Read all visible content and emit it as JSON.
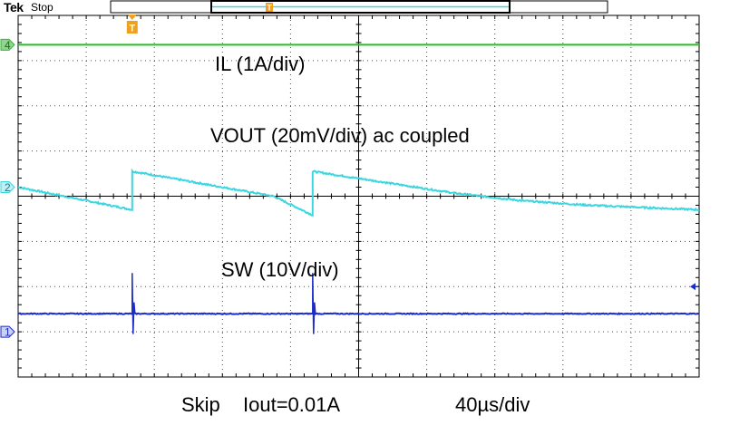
{
  "scope": {
    "brand": "Tek",
    "run_state": "Stop",
    "trigger_marker": "T",
    "record_marker": "T",
    "annotations": {
      "il": "IL (1A/div)",
      "vout": "VOUT (20mV/div) ac coupled",
      "sw": "SW (10V/div)"
    },
    "caption": {
      "mode": "Skip",
      "iout": "Iout=0.01A",
      "timebase": "40µs/div"
    },
    "colors": {
      "grid": "#000000",
      "ch1_sw": "#1c2cc8",
      "ch2_vout": "#3cd6e0",
      "ch4_il": "#26bf26",
      "trigger": "#f0a020"
    }
  },
  "chart_data": {
    "type": "line",
    "title": "",
    "xlabel": "",
    "ylabel": "",
    "x_divisions": 10,
    "y_divisions": 8,
    "grid": true,
    "timebase": "40µs/div",
    "xlim": [
      0,
      400
    ],
    "x_unit": "µs",
    "ylim": [
      -4,
      4
    ],
    "y_unit": "div",
    "series": [
      {
        "name": "4",
        "label": "IL (1A/div)",
        "channel": 4,
        "color": "#26bf26",
        "ground_level": 3.35,
        "x": [
          0,
          400
        ],
        "y": [
          3.35,
          3.35
        ]
      },
      {
        "name": "2",
        "label": "VOUT (20mV/div) ac coupled",
        "channel": 2,
        "color": "#3cd6e0",
        "ground_level": 0.2,
        "x": [
          0,
          67,
          67,
          150,
          173,
          173,
          256,
          296,
          335,
          400
        ],
        "y": [
          0.2,
          -0.3,
          0.55,
          0.0,
          -0.42,
          0.55,
          0.07,
          -0.1,
          -0.2,
          -0.3
        ]
      },
      {
        "name": "1",
        "label": "SW (10V/div)",
        "channel": 1,
        "color": "#1c2cc8",
        "ground_level": -3.0,
        "x": [
          0,
          67,
          67,
          67.5,
          68,
          69,
          400
        ],
        "y": [
          -2.6,
          -2.6,
          -1.7,
          -3.0,
          -2.4,
          -2.6,
          -2.6
        ],
        "spikes_at": [
          67,
          173
        ]
      }
    ]
  }
}
